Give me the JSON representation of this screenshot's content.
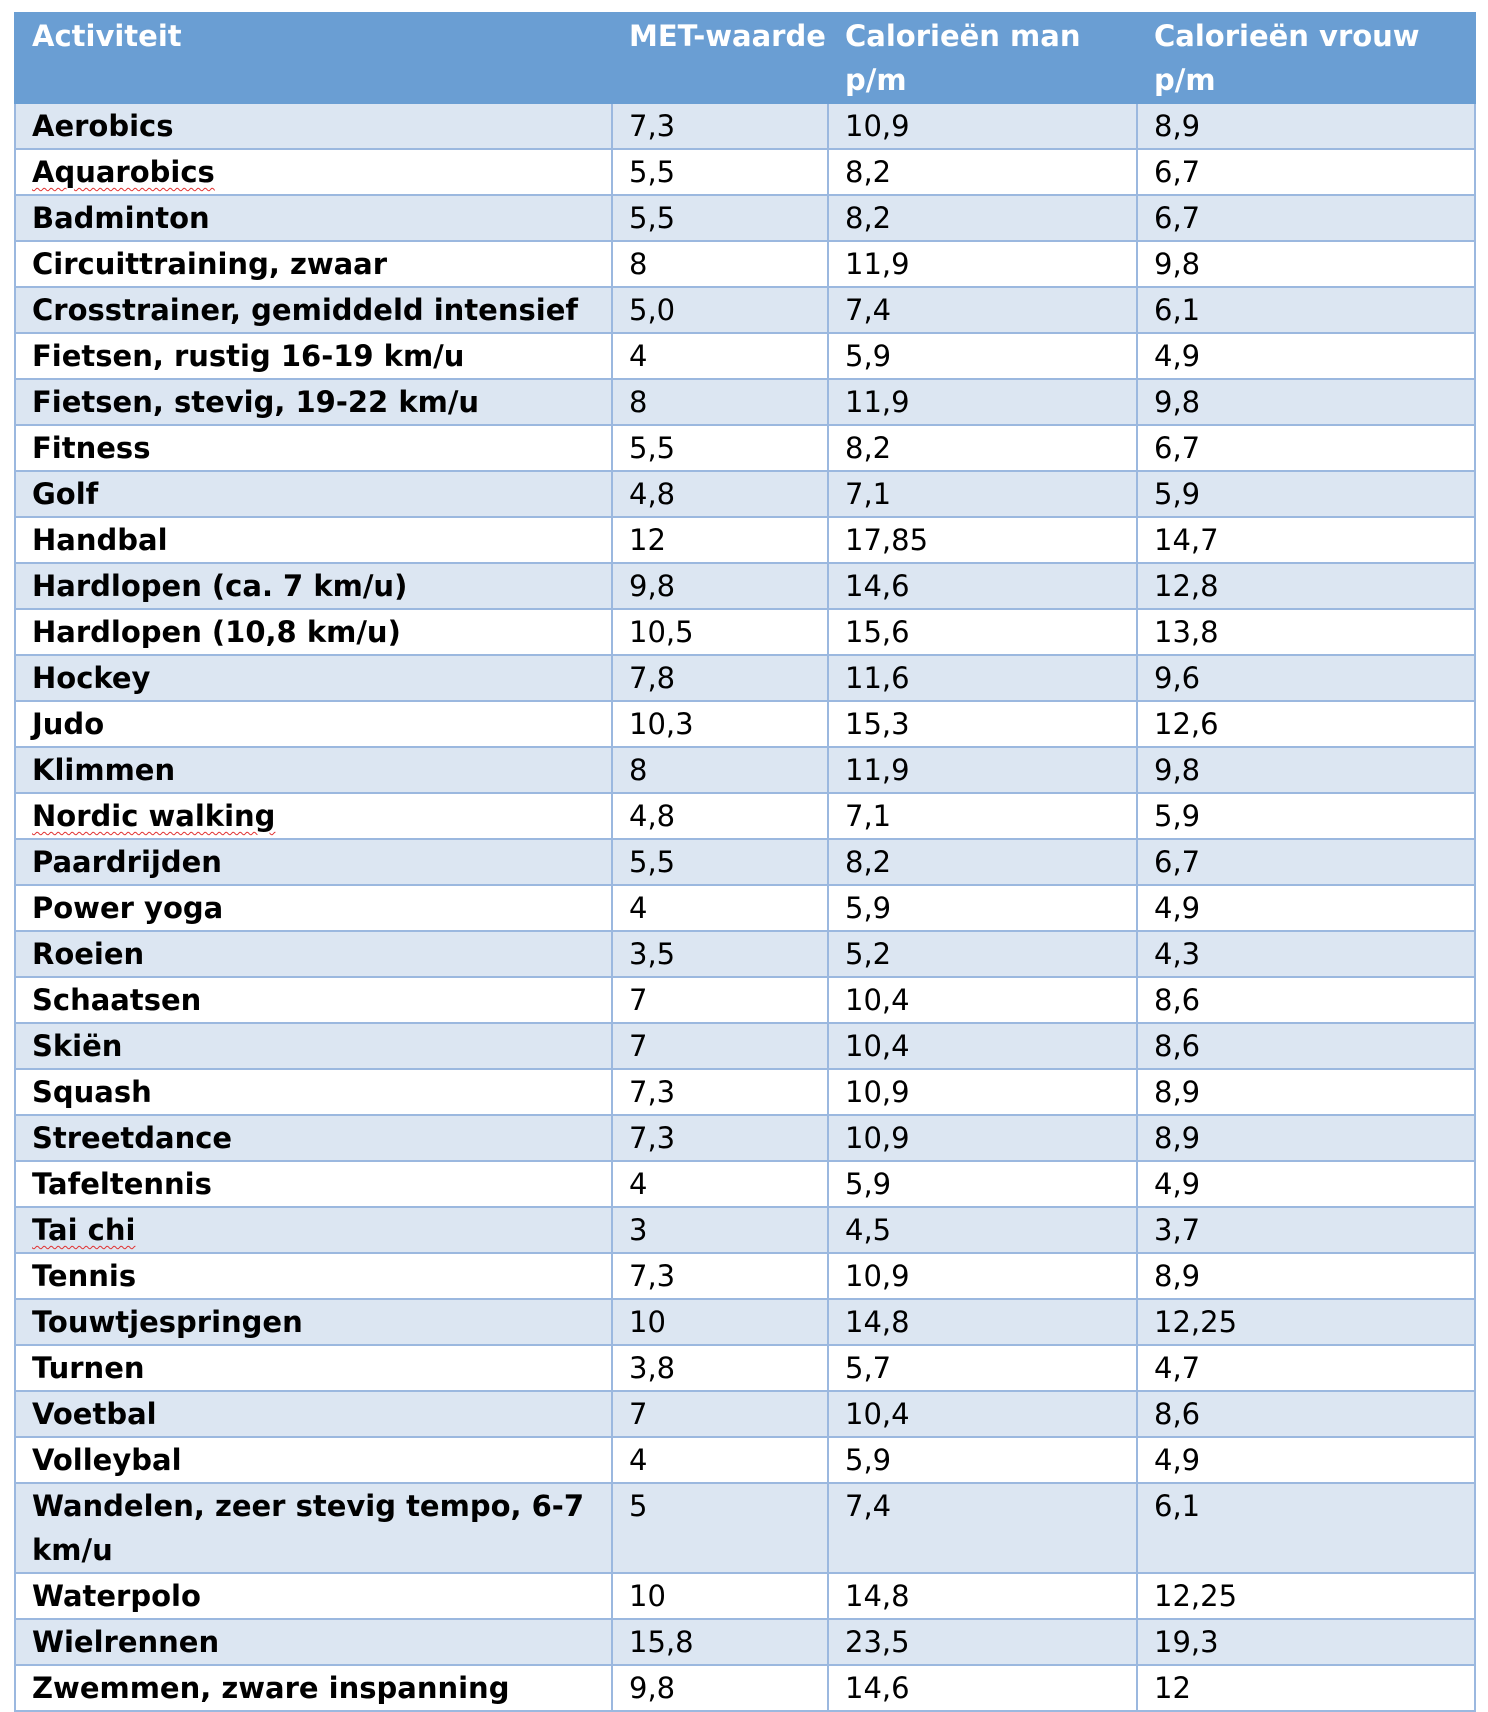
{
  "table": {
    "headers": [
      "Activiteit",
      "MET-waarde",
      "Calorieën man p/m",
      "Calorieën vrouw p/m"
    ],
    "rows": [
      [
        "Aerobics",
        "7,3",
        "10,9",
        "8,9"
      ],
      [
        "Aquarobics",
        "5,5",
        "8,2",
        "6,7"
      ],
      [
        "Badminton",
        "5,5",
        "8,2",
        "6,7"
      ],
      [
        "Circuittraining, zwaar",
        "8",
        "11,9",
        "9,8"
      ],
      [
        "Crosstrainer, gemiddeld intensief",
        "5,0",
        "7,4",
        "6,1"
      ],
      [
        "Fietsen, rustig 16-19 km/u",
        "4",
        "5,9",
        "4,9"
      ],
      [
        "Fietsen, stevig, 19-22 km/u",
        "8",
        "11,9",
        "9,8"
      ],
      [
        "Fitness",
        "5,5",
        "8,2",
        "6,7"
      ],
      [
        "Golf",
        "4,8",
        "7,1",
        "5,9"
      ],
      [
        "Handbal",
        "12",
        "17,85",
        "14,7"
      ],
      [
        "Hardlopen (ca. 7 km/u)",
        "9,8",
        "14,6",
        "12,8"
      ],
      [
        "Hardlopen (10,8 km/u)",
        "10,5",
        "15,6",
        "13,8"
      ],
      [
        "Hockey",
        "7,8",
        "11,6",
        "9,6"
      ],
      [
        "Judo",
        "10,3",
        "15,3",
        "12,6"
      ],
      [
        "Klimmen",
        "8",
        "11,9",
        "9,8"
      ],
      [
        "Nordic walking",
        "4,8",
        "7,1",
        "5,9"
      ],
      [
        "Paardrijden",
        "5,5",
        "8,2",
        "6,7"
      ],
      [
        "Power yoga",
        "4",
        "5,9",
        "4,9"
      ],
      [
        "Roeien",
        "3,5",
        "5,2",
        "4,3"
      ],
      [
        "Schaatsen",
        "7",
        "10,4",
        "8,6"
      ],
      [
        "Skiën",
        "7",
        "10,4",
        "8,6"
      ],
      [
        "Squash",
        "7,3",
        "10,9",
        "8,9"
      ],
      [
        "Streetdance",
        "7,3",
        "10,9",
        "8,9"
      ],
      [
        "Tafeltennis",
        "4",
        "5,9",
        "4,9"
      ],
      [
        "Tai chi",
        "3",
        "4,5",
        "3,7"
      ],
      [
        "Tennis",
        "7,3",
        "10,9",
        "8,9"
      ],
      [
        "Touwtjespringen",
        "10",
        "14,8",
        "12,25"
      ],
      [
        "Turnen",
        "3,8",
        "5,7",
        "4,7"
      ],
      [
        "Voetbal",
        "7",
        "10,4",
        "8,6"
      ],
      [
        "Volleybal",
        "4",
        "5,9",
        "4,9"
      ],
      [
        "Wandelen, zeer stevig tempo, 6-7 km/u",
        "5",
        "7,4",
        "6,1"
      ],
      [
        "Waterpolo",
        "10",
        "14,8",
        "12,25"
      ],
      [
        "Wielrennen",
        "15,8",
        "23,5",
        "19,3"
      ],
      [
        "Zwemmen, zware inspanning",
        "9,8",
        "14,6",
        "12"
      ]
    ],
    "spellcheck_flagged": [
      "Aquarobics",
      "Nordic walking",
      "Tai chi"
    ]
  },
  "colors": {
    "header_bg": "#6a9ed3",
    "band_bg": "#dce6f2",
    "border": "#9bb8df",
    "spell_underline": "#e03030"
  }
}
